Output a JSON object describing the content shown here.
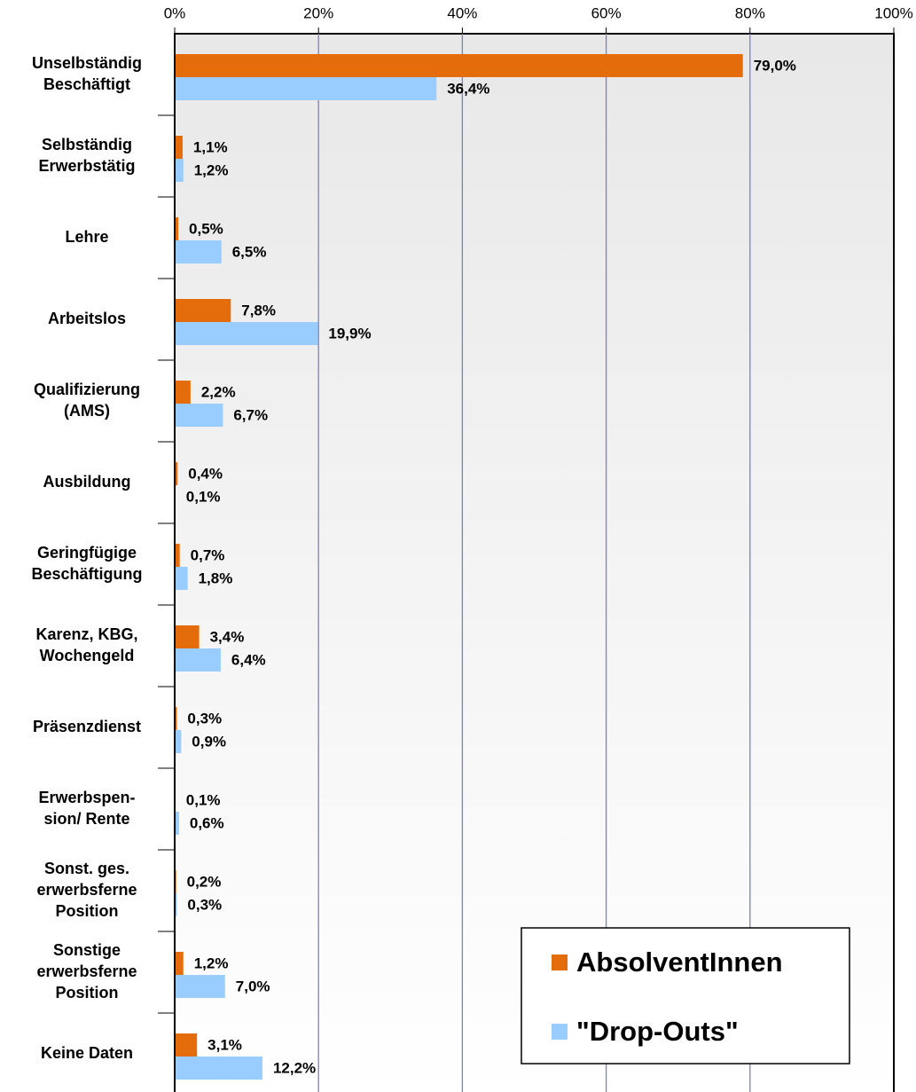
{
  "chart_data": {
    "type": "hbar",
    "categories": [
      [
        "Unselbständig",
        "Beschäftigt"
      ],
      [
        "Selbständig",
        "Erwerbstätig"
      ],
      [
        "Lehre"
      ],
      [
        "Arbeitslos"
      ],
      [
        "Qualifizierung",
        "(AMS)"
      ],
      [
        "Ausbildung"
      ],
      [
        "Geringfügige",
        "Beschäftigung"
      ],
      [
        "Karenz, KBG,",
        "Wochengeld"
      ],
      [
        "Präsenzdienst"
      ],
      [
        "Erwerbspen-",
        "sion/ Rente"
      ],
      [
        "Sonst. ges.",
        "erwerbsferne",
        "Position"
      ],
      [
        "Sonstige",
        "erwerbsferne",
        "Position"
      ],
      [
        "Keine Daten"
      ]
    ],
    "series": [
      {
        "name": "AbsolventInnen",
        "color": "#e46c0a",
        "values": [
          79.0,
          1.1,
          0.5,
          7.8,
          2.2,
          0.4,
          0.7,
          3.4,
          0.3,
          0.1,
          0.2,
          1.2,
          3.1
        ],
        "value_labels": [
          "79,0%",
          "1,1%",
          "0,5%",
          "7,8%",
          "2,2%",
          "0,4%",
          "0,7%",
          "3,4%",
          "0,3%",
          "0,1%",
          "0,2%",
          "1,2%",
          "3,1%"
        ]
      },
      {
        "name": "\"Drop-Outs\"",
        "color": "#99ccff",
        "values": [
          36.4,
          1.2,
          6.5,
          19.9,
          6.7,
          0.1,
          1.8,
          6.4,
          0.9,
          0.6,
          0.3,
          7.0,
          12.2
        ],
        "value_labels": [
          "36,4%",
          "1,2%",
          "6,5%",
          "19,9%",
          "6,7%",
          "0,1%",
          "1,8%",
          "6,4%",
          "0,9%",
          "0,6%",
          "0,3%",
          "7,0%",
          "12,2%"
        ]
      }
    ],
    "xlim": [
      0,
      100
    ],
    "xticks": [
      {
        "value": 0,
        "label": "0%"
      },
      {
        "value": 20,
        "label": "20%"
      },
      {
        "value": 40,
        "label": "40%"
      },
      {
        "value": 60,
        "label": "60%"
      },
      {
        "value": 80,
        "label": "80%"
      },
      {
        "value": 100,
        "label": "100%"
      }
    ],
    "grid": true,
    "legend": "lower right"
  }
}
